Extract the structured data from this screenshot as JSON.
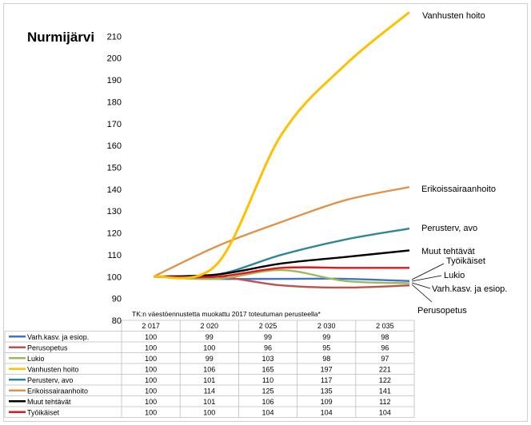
{
  "chart_data": {
    "type": "line",
    "title": "Nurmijärvi",
    "subtitle": "TK:n väestöennustetta muokattu 2017 toteutuman perusteella*",
    "categories": [
      "2 017",
      "2 020",
      "2 025",
      "2 030",
      "2 035"
    ],
    "ylim": [
      80,
      220
    ],
    "yticks": [
      80,
      90,
      100,
      110,
      120,
      130,
      140,
      150,
      160,
      170,
      180,
      190,
      200,
      210
    ],
    "grid": false,
    "legend": "table-below",
    "series": [
      {
        "name": "Varh.kasv. ja esiop.",
        "end_label": "Varh.kasv. ja esiop.",
        "color": "#4472C4",
        "values": [
          100,
          99,
          99,
          99,
          98
        ]
      },
      {
        "name": "Perusopetus",
        "end_label": "Perusopetus",
        "color": "#C0504D",
        "values": [
          100,
          100,
          96,
          95,
          96
        ]
      },
      {
        "name": "Lukio",
        "end_label": "Lukio",
        "color": "#9BBB59",
        "values": [
          100,
          99,
          103,
          98,
          97
        ]
      },
      {
        "name": "Vanhusten hoito",
        "end_label": "Vanhusten hoito",
        "color": "#FFC000",
        "values": [
          100,
          106,
          165,
          197,
          221
        ]
      },
      {
        "name": "Perusterv, avo",
        "end_label": "Perusterv, avo",
        "color": "#31859C",
        "values": [
          100,
          101,
          110,
          117,
          122
        ]
      },
      {
        "name": "Erikoissairaanhoito",
        "end_label": "Erikoissairaanhoito",
        "color": "#E0924B",
        "values": [
          100,
          114,
          125,
          135,
          141
        ]
      },
      {
        "name": "Muut tehtävät",
        "end_label": "Muut tehtävät",
        "color": "#000000",
        "values": [
          100,
          101,
          106,
          109,
          112
        ]
      },
      {
        "name": "Työikäiset",
        "end_label": "Työikäiset",
        "color": "#E8141B",
        "values": [
          100,
          100,
          104,
          104,
          104
        ]
      }
    ]
  }
}
